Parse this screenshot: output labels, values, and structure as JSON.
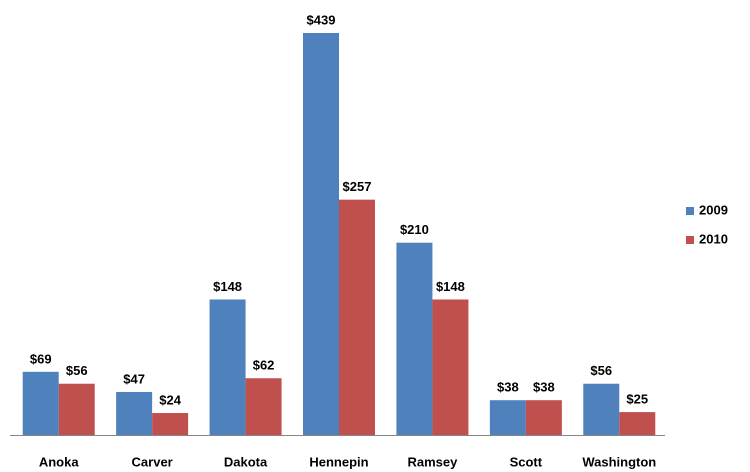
{
  "chart_data": {
    "type": "bar",
    "categories": [
      "Anoka",
      "Carver",
      "Dakota",
      "Hennepin",
      "Ramsey",
      "Scott",
      "Washington"
    ],
    "series": [
      {
        "name": "2009",
        "color": "#4f81bd",
        "values": [
          69,
          47,
          148,
          439,
          210,
          38,
          56
        ],
        "value_labels": [
          "$69",
          "$47",
          "$148",
          "$439",
          "$210",
          "$38",
          "$56"
        ]
      },
      {
        "name": "2010",
        "color": "#c0504d",
        "values": [
          56,
          24,
          62,
          257,
          148,
          38,
          25
        ],
        "value_labels": [
          "$56",
          "$24",
          "$62",
          "$257",
          "$148",
          "$38",
          "$25"
        ]
      }
    ],
    "legend": "right"
  }
}
